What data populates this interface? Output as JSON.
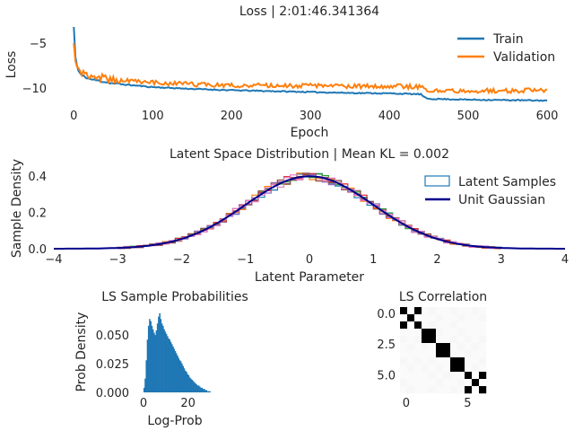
{
  "chart_data": [
    {
      "type": "line",
      "title": "Loss | 2:01:46.341364",
      "xlabel": "Epoch",
      "ylabel": "Loss",
      "xlim": [
        -14,
        600
      ],
      "ylim": [
        -12,
        -2.5
      ],
      "xticks": [
        0,
        100,
        200,
        300,
        400,
        500,
        600
      ],
      "yticks": [
        -5,
        -10
      ],
      "xtick_labels": [
        "0",
        "100",
        "200",
        "300",
        "400",
        "500",
        "600"
      ],
      "ytick_labels": [
        "−5",
        "−10"
      ],
      "grid": false,
      "legend": "top-right",
      "series": [
        {
          "name": "Train",
          "color": "#1f77b4",
          "x": [
            0,
            2,
            5,
            10,
            20,
            50,
            100,
            150,
            200,
            250,
            300,
            350,
            400,
            440,
            445,
            450,
            500,
            550,
            600
          ],
          "y": [
            -3.2,
            -6.5,
            -8.0,
            -8.6,
            -9.0,
            -9.5,
            -9.9,
            -10.1,
            -10.25,
            -10.35,
            -10.45,
            -10.55,
            -10.6,
            -10.7,
            -11.1,
            -11.2,
            -11.3,
            -11.35,
            -11.4
          ]
        },
        {
          "name": "Validation",
          "color": "#ff7f0e",
          "x": [
            0,
            2,
            5,
            10,
            20,
            50,
            100,
            150,
            200,
            250,
            300,
            350,
            400,
            440,
            445,
            450,
            500,
            550,
            600
          ],
          "y": [
            -5.0,
            -7.0,
            -7.8,
            -8.3,
            -8.6,
            -9.1,
            -9.4,
            -9.6,
            -9.7,
            -9.75,
            -9.75,
            -9.8,
            -9.8,
            -9.85,
            -10.3,
            -10.35,
            -10.3,
            -10.3,
            -10.25
          ]
        }
      ]
    },
    {
      "type": "line",
      "title": "Latent Space Distribution | Mean KL = 0.002",
      "xlabel": "Latent Parameter",
      "ylabel": "Sample Density",
      "xlim": [
        -4,
        4
      ],
      "ylim": [
        0,
        0.46
      ],
      "xticks": [
        -4,
        -3,
        -2,
        -1,
        0,
        1,
        2,
        3,
        4
      ],
      "yticks": [
        0.0,
        0.2,
        0.4
      ],
      "xtick_labels": [
        "−4",
        "−3",
        "−2",
        "−1",
        "0",
        "1",
        "2",
        "3",
        "4"
      ],
      "ytick_labels": [
        "0.0",
        "0.2",
        "0.4"
      ],
      "grid": false,
      "legend": "top-right",
      "series": [
        {
          "name": "Latent Samples",
          "style": "step-histogram",
          "count": 7,
          "color": "#1f77b4"
        },
        {
          "name": "Unit Gaussian",
          "style": "line",
          "color": "#00008b"
        }
      ],
      "histogram_colors": [
        "#1f77b4",
        "#ff7f0e",
        "#2ca02c",
        "#d62728",
        "#9467bd",
        "#8c564b",
        "#e377c2"
      ]
    },
    {
      "type": "bar",
      "title": "LS Sample Probabilities",
      "xlabel": "Log-Prob",
      "ylabel": "Prob Density",
      "xlim": [
        -2,
        31
      ],
      "ylim": [
        0,
        0.072
      ],
      "xticks": [
        0,
        20
      ],
      "yticks": [
        0.0,
        0.025,
        0.05
      ],
      "xtick_labels": [
        "0",
        "20"
      ],
      "ytick_labels": [
        "0.000",
        "0.025",
        "0.050"
      ],
      "color": "#1f77b4",
      "bin_centers": [
        0.25,
        0.75,
        1.25,
        1.75,
        2.25,
        2.75,
        3.25,
        3.75,
        4.25,
        4.75,
        5.25,
        5.75,
        6.25,
        6.75,
        7.25,
        7.75,
        8.25,
        8.75,
        9.25,
        9.75,
        10.25,
        10.75,
        11.25,
        11.75,
        12.25,
        12.75,
        13.25,
        13.75,
        14.25,
        14.75,
        15.25,
        15.75,
        16.25,
        16.75,
        17.25,
        17.75,
        18.25,
        18.75,
        19.25,
        19.75,
        20.25,
        20.75,
        21.25,
        21.75,
        22.25,
        22.75,
        23.25,
        23.75,
        24.25,
        24.75,
        25.25,
        25.75,
        26.25,
        26.75,
        27.25,
        27.75,
        28.25,
        28.75,
        29.25,
        29.75
      ],
      "values": [
        0.004,
        0.012,
        0.028,
        0.046,
        0.058,
        0.064,
        0.062,
        0.058,
        0.055,
        0.052,
        0.05,
        0.054,
        0.06,
        0.066,
        0.069,
        0.064,
        0.06,
        0.058,
        0.055,
        0.053,
        0.051,
        0.049,
        0.047,
        0.046,
        0.044,
        0.042,
        0.04,
        0.038,
        0.036,
        0.034,
        0.032,
        0.03,
        0.028,
        0.027,
        0.025,
        0.023,
        0.021,
        0.019,
        0.018,
        0.016,
        0.015,
        0.013,
        0.012,
        0.011,
        0.01,
        0.009,
        0.008,
        0.007,
        0.006,
        0.006,
        0.005,
        0.004,
        0.004,
        0.003,
        0.003,
        0.002,
        0.002,
        0.001,
        0.001,
        0.001
      ]
    },
    {
      "type": "heatmap",
      "title": "LS Correlation",
      "xticks": [
        0,
        5
      ],
      "yticks": [
        0.0,
        2.5,
        5.0
      ],
      "xtick_labels": [
        "0",
        "5"
      ],
      "ytick_labels": [
        "0.0",
        "2.5",
        "5.0"
      ],
      "cmap": "grayscale (black = 1)",
      "matrix": [
        [
          1,
          0,
          1,
          0.02,
          0.03,
          0.02,
          0.02,
          0.03,
          0.02,
          0.02,
          0.03,
          0.02
        ],
        [
          0,
          1,
          0,
          0.02,
          0.02,
          0.03,
          0.02,
          0.02,
          0.03,
          0.02,
          0.02,
          0.03
        ],
        [
          1,
          0,
          1,
          0.02,
          0.03,
          0.02,
          0.02,
          0.03,
          0.02,
          0.02,
          0.02,
          0.02
        ],
        [
          0.02,
          0.02,
          0.02,
          1,
          1,
          0.03,
          0.02,
          0.02,
          0.03,
          0.02,
          0.02,
          0.02
        ],
        [
          0.03,
          0.02,
          0.03,
          1,
          1,
          0.02,
          0.02,
          0.03,
          0.02,
          0.03,
          0.02,
          0.03
        ],
        [
          0.02,
          0.03,
          0.02,
          0.03,
          0.02,
          1,
          1,
          0.02,
          0.03,
          0.02,
          0.03,
          0.02
        ],
        [
          0.02,
          0.02,
          0.02,
          0.02,
          0.02,
          1,
          1,
          0.02,
          0.02,
          0.03,
          0.02,
          0.02
        ],
        [
          0.03,
          0.02,
          0.03,
          0.02,
          0.03,
          0.02,
          0.02,
          1,
          1,
          0.02,
          0.02,
          0.03
        ],
        [
          0.02,
          0.03,
          0.02,
          0.03,
          0.02,
          0.03,
          0.02,
          1,
          1,
          0.02,
          0.03,
          0.02
        ],
        [
          0.02,
          0.02,
          0.02,
          0.02,
          0.03,
          0.02,
          0.03,
          0.02,
          0.02,
          1,
          0,
          1
        ],
        [
          0.03,
          0.02,
          0.02,
          0.02,
          0.02,
          0.03,
          0.02,
          0.02,
          0.03,
          0,
          1,
          0
        ],
        [
          0.02,
          0.03,
          0.02,
          0.02,
          0.03,
          0.02,
          0.02,
          0.03,
          0.02,
          1,
          0,
          1
        ]
      ]
    }
  ]
}
